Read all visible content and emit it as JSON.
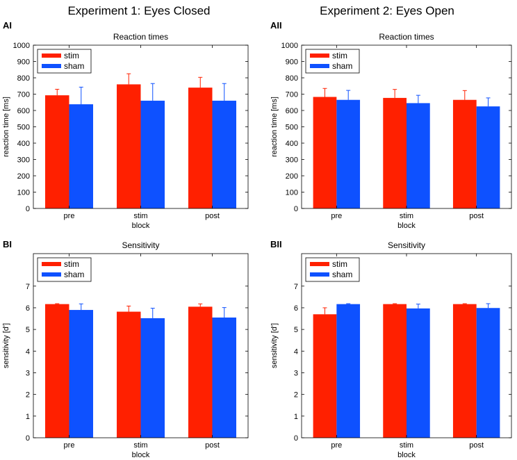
{
  "figure": {
    "column_titles": [
      "Experiment 1: Eyes Closed",
      "Experiment 2: Eyes Open"
    ],
    "colors": {
      "stim": "#ff2000",
      "sham": "#0e51ff",
      "axis": "#000000",
      "errorbar_stim": "#ff2000",
      "errorbar_sham": "#0e51ff"
    }
  },
  "chart_data": [
    {
      "panel": "AI",
      "type": "bar",
      "title": "Reaction times",
      "ylabel": "reaction time [ms]",
      "xlabel": "block",
      "categories": [
        "pre",
        "stim",
        "post"
      ],
      "ylim": [
        0,
        1000
      ],
      "yticks": [
        0,
        100,
        200,
        300,
        400,
        500,
        600,
        700,
        800,
        900,
        1000
      ],
      "legend": {
        "entries": [
          "stim",
          "sham"
        ],
        "placement": "top-left"
      },
      "series": [
        {
          "name": "stim",
          "values": [
            693,
            760,
            740
          ],
          "errors": [
            37,
            65,
            63
          ]
        },
        {
          "name": "sham",
          "values": [
            638,
            660,
            660
          ],
          "errors": [
            105,
            105,
            105
          ]
        }
      ]
    },
    {
      "panel": "AII",
      "type": "bar",
      "title": "Reaction times",
      "ylabel": "reaction time [ms]",
      "xlabel": "block",
      "categories": [
        "pre",
        "stim",
        "post"
      ],
      "ylim": [
        0,
        1000
      ],
      "yticks": [
        0,
        100,
        200,
        300,
        400,
        500,
        600,
        700,
        800,
        900,
        1000
      ],
      "legend": {
        "entries": [
          "stim",
          "sham"
        ],
        "placement": "top-left"
      },
      "series": [
        {
          "name": "stim",
          "values": [
            683,
            677,
            665
          ],
          "errors": [
            52,
            52,
            57
          ]
        },
        {
          "name": "sham",
          "values": [
            665,
            645,
            625
          ],
          "errors": [
            58,
            48,
            52
          ]
        }
      ]
    },
    {
      "panel": "BI",
      "type": "bar",
      "title": "Sensitivity",
      "ylabel": "sensitivity [d']",
      "xlabel": "block",
      "categories": [
        "pre",
        "stim",
        "post"
      ],
      "ylim": [
        0,
        8.5
      ],
      "yticks": [
        0,
        1,
        2,
        3,
        4,
        5,
        6,
        7
      ],
      "legend": {
        "entries": [
          "stim",
          "sham"
        ],
        "placement": "top-left"
      },
      "series": [
        {
          "name": "stim",
          "values": [
            6.17,
            5.82,
            6.05
          ],
          "errors": [
            0.02,
            0.26,
            0.13
          ]
        },
        {
          "name": "sham",
          "values": [
            5.9,
            5.52,
            5.55
          ],
          "errors": [
            0.28,
            0.46,
            0.46
          ]
        }
      ]
    },
    {
      "panel": "BII",
      "type": "bar",
      "title": "Sensitivity",
      "ylabel": "sensitivity [d']",
      "xlabel": "block",
      "categories": [
        "pre",
        "stim",
        "post"
      ],
      "ylim": [
        0,
        8.5
      ],
      "yticks": [
        0,
        1,
        2,
        3,
        4,
        5,
        6,
        7
      ],
      "legend": {
        "entries": [
          "stim",
          "sham"
        ],
        "placement": "top-left"
      },
      "series": [
        {
          "name": "stim",
          "values": [
            5.7,
            6.17,
            6.17
          ],
          "errors": [
            0.3,
            0.02,
            0.02
          ]
        },
        {
          "name": "sham",
          "values": [
            6.17,
            5.97,
            5.99
          ],
          "errors": [
            0.02,
            0.2,
            0.2
          ]
        }
      ]
    }
  ]
}
